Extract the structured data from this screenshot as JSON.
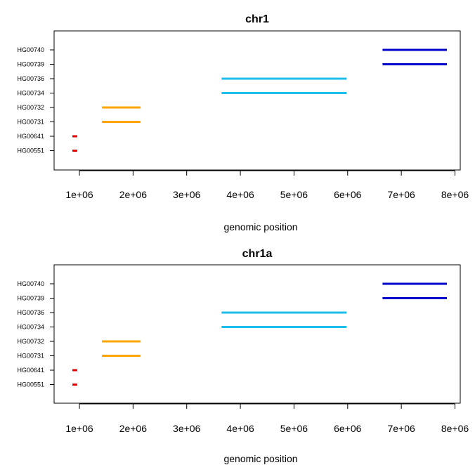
{
  "chart_data": [
    {
      "type": "segment",
      "title": "chr1",
      "xlabel": "genomic position",
      "ylabel": "",
      "xlim": [
        750000,
        8050000
      ],
      "x_ticks": [
        "1e+06",
        "2e+06",
        "3e+06",
        "4e+06",
        "5e+06",
        "6e+06",
        "7e+06",
        "8e+06"
      ],
      "x_tick_values": [
        1000000,
        2000000,
        3000000,
        4000000,
        5000000,
        6000000,
        7000000,
        8000000
      ],
      "categories": [
        "HG00740",
        "HG00739",
        "HG00736",
        "HG00734",
        "HG00732",
        "HG00731",
        "HG00641",
        "HG00551"
      ],
      "segments": [
        {
          "sample": "HG00740",
          "start": 6650000,
          "end": 7850000,
          "color": "#0000cd"
        },
        {
          "sample": "HG00739",
          "start": 6650000,
          "end": 7850000,
          "color": "#0000cd"
        },
        {
          "sample": "HG00736",
          "start": 3650000,
          "end": 5980000,
          "color": "#1ebdea"
        },
        {
          "sample": "HG00734",
          "start": 3650000,
          "end": 5980000,
          "color": "#1ebdea"
        },
        {
          "sample": "HG00732",
          "start": 1420000,
          "end": 2140000,
          "color": "#ffa500"
        },
        {
          "sample": "HG00731",
          "start": 1420000,
          "end": 2140000,
          "color": "#ffa500"
        },
        {
          "sample": "HG00641",
          "start": 870000,
          "end": 960000,
          "color": "#e00000"
        },
        {
          "sample": "HG00551",
          "start": 870000,
          "end": 960000,
          "color": "#e00000"
        }
      ]
    },
    {
      "type": "segment",
      "title": "chr1a",
      "xlabel": "genomic position",
      "ylabel": "",
      "xlim": [
        750000,
        8050000
      ],
      "x_ticks": [
        "1e+06",
        "2e+06",
        "3e+06",
        "4e+06",
        "5e+06",
        "6e+06",
        "7e+06",
        "8e+06"
      ],
      "x_tick_values": [
        1000000,
        2000000,
        3000000,
        4000000,
        5000000,
        6000000,
        7000000,
        8000000
      ],
      "categories": [
        "HG00740",
        "HG00739",
        "HG00736",
        "HG00734",
        "HG00732",
        "HG00731",
        "HG00641",
        "HG00551"
      ],
      "segments": [
        {
          "sample": "HG00740",
          "start": 6650000,
          "end": 7850000,
          "color": "#0000cd"
        },
        {
          "sample": "HG00739",
          "start": 6650000,
          "end": 7850000,
          "color": "#0000cd"
        },
        {
          "sample": "HG00736",
          "start": 3650000,
          "end": 5980000,
          "color": "#1ebdea"
        },
        {
          "sample": "HG00734",
          "start": 3650000,
          "end": 5980000,
          "color": "#1ebdea"
        },
        {
          "sample": "HG00732",
          "start": 1420000,
          "end": 2140000,
          "color": "#ffa500"
        },
        {
          "sample": "HG00731",
          "start": 1420000,
          "end": 2140000,
          "color": "#ffa500"
        },
        {
          "sample": "HG00641",
          "start": 870000,
          "end": 960000,
          "color": "#e00000"
        },
        {
          "sample": "HG00551",
          "start": 870000,
          "end": 960000,
          "color": "#e00000"
        }
      ]
    }
  ]
}
